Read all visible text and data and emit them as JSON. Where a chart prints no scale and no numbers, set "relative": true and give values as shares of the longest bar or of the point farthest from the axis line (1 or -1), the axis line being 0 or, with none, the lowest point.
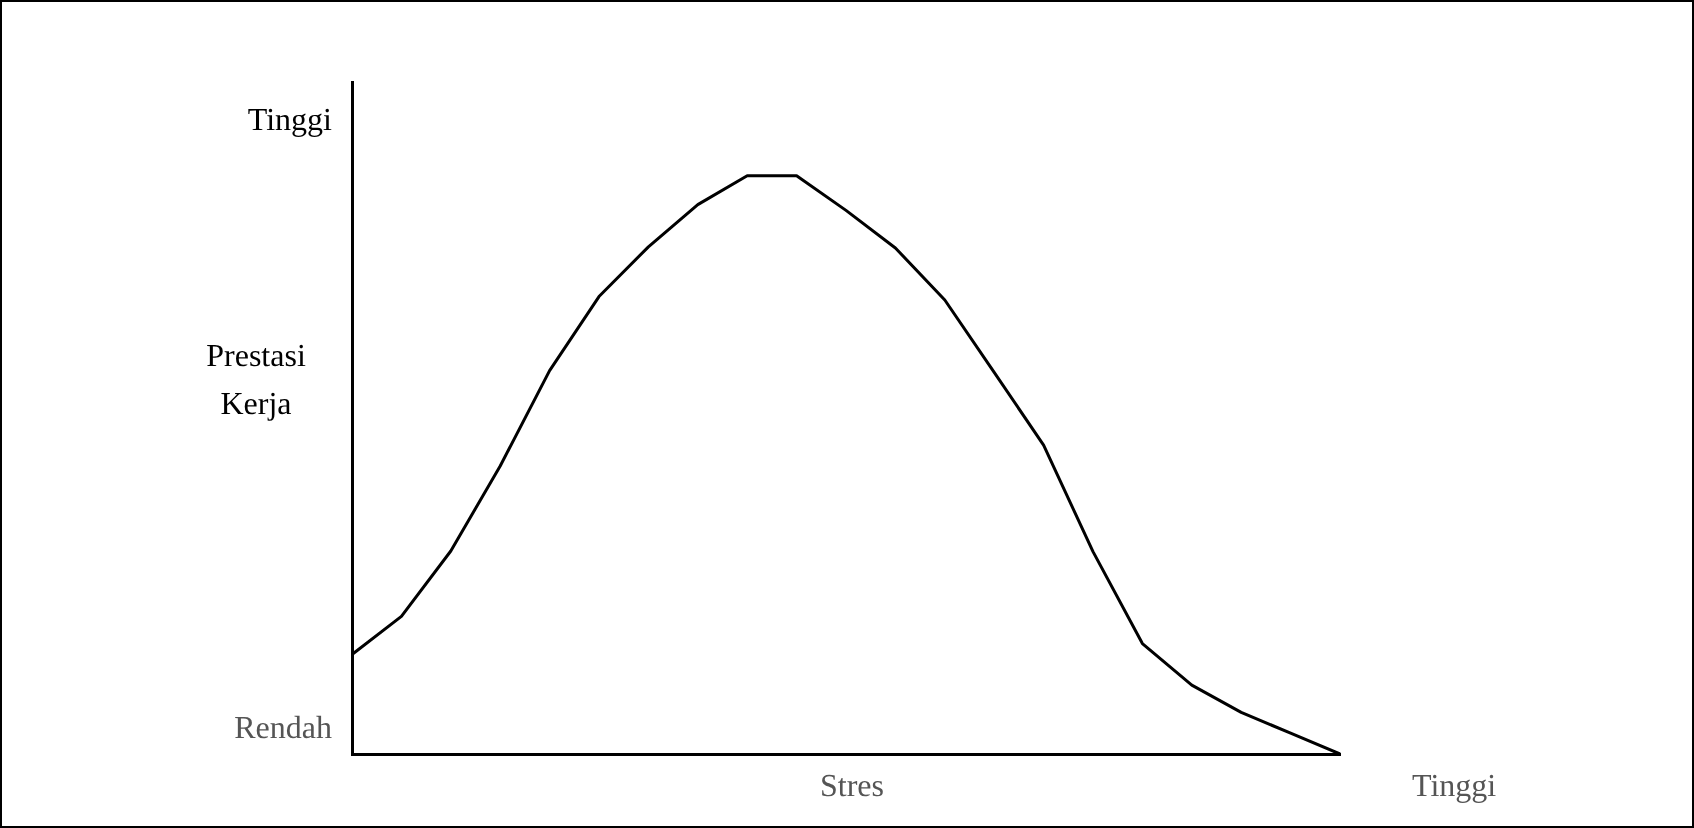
{
  "chart_data": {
    "type": "line",
    "relative": true,
    "ylabel": "Prestasi Kerja",
    "xlabel": "Stres",
    "annotations": [
      "Tinggi",
      "Rendah",
      "Tinggi"
    ],
    "categories": [
      null,
      null,
      null,
      null,
      null,
      null,
      null,
      null,
      null,
      null,
      null,
      null,
      null,
      null,
      null,
      null,
      null,
      null,
      null,
      null,
      null
    ],
    "tick_labels": false,
    "grid": false,
    "legend": false,
    "marker": "none",
    "line_style": "solid",
    "series": [
      {
        "color": "#000000",
        "values": [
          0.172,
          0.238,
          0.351,
          0.498,
          0.663,
          0.791,
          0.877,
          0.95,
          1,
          1,
          0.94,
          0.875,
          0.785,
          0.66,
          0.534,
          0.35,
          0.191,
          0.119,
          0.072,
          0.036,
          0
        ]
      }
    ]
  }
}
